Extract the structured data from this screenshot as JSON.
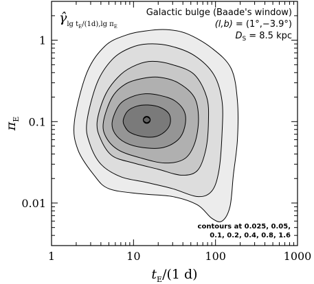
{
  "chart_data": {
    "type": "contour",
    "xscale": "log",
    "yscale": "log",
    "xlim": [
      1,
      1000
    ],
    "ylim": [
      0.003,
      3
    ],
    "xticks": [
      {
        "value": 1,
        "label": "1"
      },
      {
        "value": 10,
        "label": "10"
      },
      {
        "value": 100,
        "label": "100"
      },
      {
        "value": 1000,
        "label": "1000"
      }
    ],
    "yticks": [
      {
        "value": 0.01,
        "label": "0.01"
      },
      {
        "value": 0.1,
        "label": "0.1"
      },
      {
        "value": 1,
        "label": "1"
      }
    ],
    "xlabel": {
      "main": "t",
      "sub": "E",
      "rest": "/(1 d)"
    },
    "ylabel": {
      "main": "π",
      "sub": "E"
    },
    "title_symbol": {
      "main": "γ̂",
      "sub1": "lg t",
      "sub2": "E",
      "sub3": "/(1d),lg π",
      "sub4": "E"
    },
    "annotation": {
      "line1": "Galactic bulge (Baade's window)",
      "line2_lhs": "(l,b)",
      "line2_rhs": "= (1°,−3.9°)",
      "line3_lhs": "D",
      "line3_sub": "S",
      "line3_rhs": "= 8.5 kpc"
    },
    "contour_note": [
      "contours at 0.025, 0.05,",
      "0.1, 0.2, 0.4, 0.8, 1.6"
    ],
    "contour_levels": [
      0.025,
      0.05,
      0.1,
      0.2,
      0.4,
      0.8,
      1.6
    ],
    "peak": {
      "tE": 14.5,
      "piE": 0.105
    },
    "contours": [
      {
        "level": 0.025,
        "tE": [
          [
            1.9,
            0.1
          ],
          [
            2.7,
            0.4
          ],
          [
            4.5,
            0.85
          ],
          [
            8,
            1.15
          ],
          [
            14,
            1.3
          ],
          [
            25,
            1.35
          ],
          [
            45,
            1.2
          ],
          [
            90,
            0.8
          ],
          [
            155,
            0.45
          ],
          [
            185,
            0.18
          ],
          [
            185,
            0.06
          ],
          [
            165,
            0.022
          ],
          [
            150,
            0.009
          ],
          [
            120,
            0.006
          ],
          [
            90,
            0.0065
          ],
          [
            60,
            0.0095
          ],
          [
            30,
            0.012
          ],
          [
            12,
            0.013
          ],
          [
            5,
            0.015
          ],
          [
            3.3,
            0.022
          ],
          [
            2.1,
            0.045
          ]
        ]
      },
      {
        "level": 0.05,
        "tE": [
          [
            2.7,
            0.1
          ],
          [
            3.6,
            0.3
          ],
          [
            5.5,
            0.58
          ],
          [
            9,
            0.8
          ],
          [
            15,
            0.9
          ],
          [
            28,
            0.85
          ],
          [
            55,
            0.65
          ],
          [
            95,
            0.38
          ],
          [
            120,
            0.18
          ],
          [
            120,
            0.07
          ],
          [
            110,
            0.025
          ],
          [
            90,
            0.014
          ],
          [
            60,
            0.012
          ],
          [
            30,
            0.015
          ],
          [
            14,
            0.018
          ],
          [
            7,
            0.021
          ],
          [
            4,
            0.03
          ],
          [
            2.9,
            0.055
          ]
        ]
      },
      {
        "level": 0.1,
        "tE": [
          [
            3.6,
            0.1
          ],
          [
            4.6,
            0.22
          ],
          [
            7,
            0.38
          ],
          [
            11,
            0.5
          ],
          [
            17,
            0.55
          ],
          [
            30,
            0.5
          ],
          [
            55,
            0.38
          ],
          [
            78,
            0.2
          ],
          [
            82,
            0.1
          ],
          [
            76,
            0.045
          ],
          [
            60,
            0.025
          ],
          [
            38,
            0.022
          ],
          [
            20,
            0.026
          ],
          [
            10,
            0.031
          ],
          [
            5.5,
            0.038
          ],
          [
            4,
            0.06
          ]
        ]
      },
      {
        "level": 0.2,
        "tE": [
          [
            4.3,
            0.1
          ],
          [
            5.5,
            0.2
          ],
          [
            8,
            0.29
          ],
          [
            13,
            0.34
          ],
          [
            21,
            0.35
          ],
          [
            35,
            0.3
          ],
          [
            55,
            0.2
          ],
          [
            62,
            0.11
          ],
          [
            56,
            0.055
          ],
          [
            42,
            0.035
          ],
          [
            24,
            0.031
          ],
          [
            12,
            0.036
          ],
          [
            6.5,
            0.045
          ],
          [
            4.6,
            0.065
          ]
        ]
      },
      {
        "level": 0.4,
        "tE": [
          [
            5.5,
            0.1
          ],
          [
            6.7,
            0.16
          ],
          [
            9.3,
            0.2
          ],
          [
            14,
            0.22
          ],
          [
            21,
            0.21
          ],
          [
            32,
            0.18
          ],
          [
            42,
            0.13
          ],
          [
            42,
            0.085
          ],
          [
            35,
            0.06
          ],
          [
            23,
            0.048
          ],
          [
            13,
            0.048
          ],
          [
            8,
            0.055
          ],
          [
            5.9,
            0.072
          ]
        ]
      },
      {
        "level": 0.8,
        "tE": [
          [
            7.5,
            0.105
          ],
          [
            8.5,
            0.135
          ],
          [
            11,
            0.155
          ],
          [
            15,
            0.16
          ],
          [
            21,
            0.15
          ],
          [
            27,
            0.125
          ],
          [
            28,
            0.095
          ],
          [
            24,
            0.075
          ],
          [
            18,
            0.065
          ],
          [
            12.5,
            0.066
          ],
          [
            9,
            0.074
          ],
          [
            7.8,
            0.088
          ]
        ]
      },
      {
        "level": 1.6,
        "tE": [
          [
            13.1,
            0.105
          ],
          [
            14.5,
            0.114
          ],
          [
            16,
            0.105
          ],
          [
            14.5,
            0.097
          ]
        ]
      }
    ],
    "fill_colors": [
      "#ececec",
      "#dddddd",
      "#c8c8c8",
      "#b0b0b0",
      "#959595",
      "#7a7a7a",
      "#626262"
    ]
  }
}
